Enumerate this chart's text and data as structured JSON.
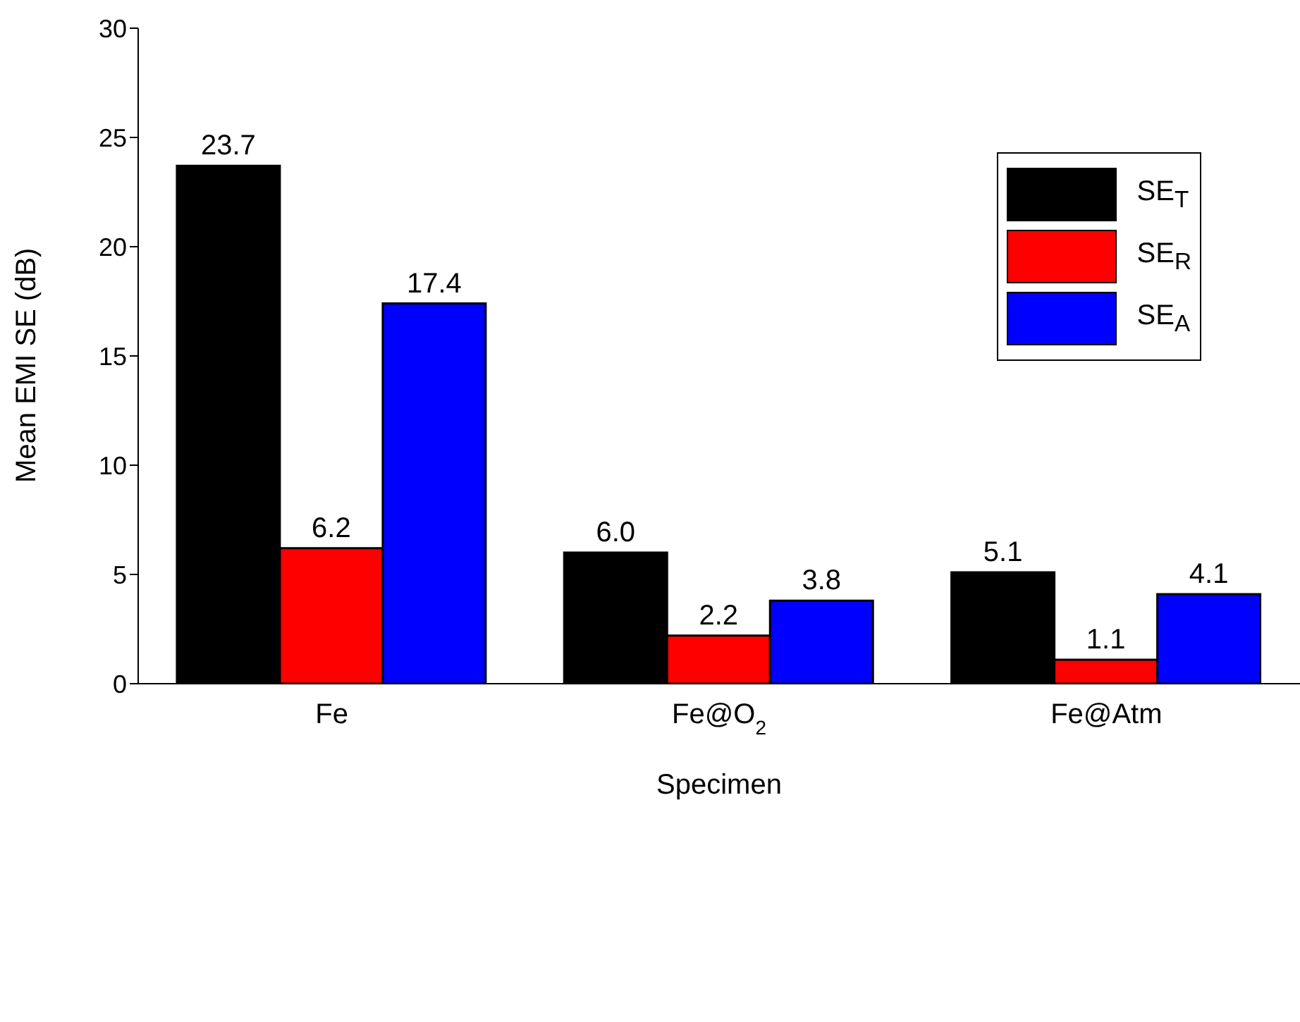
{
  "chart_data": {
    "type": "bar",
    "xlabel": "Specimen",
    "ylabel": "Mean EMI SE (dB)",
    "categories": [
      "Fe",
      "Fe@O$_{2}$",
      "Fe@Atm"
    ],
    "series": [
      {
        "name": "SE$_{T}$",
        "color": "#000000",
        "values": [
          23.7,
          6.0,
          5.1
        ],
        "value_labels": [
          "23.7",
          "6.0",
          "5.1"
        ]
      },
      {
        "name": "SE$_{R}$",
        "color": "#ff0000",
        "values": [
          6.2,
          2.2,
          1.1
        ],
        "value_labels": [
          "6.2",
          "2.2",
          "1.1"
        ]
      },
      {
        "name": "SE$_{A}$",
        "color": "#0000ff",
        "values": [
          17.4,
          3.8,
          4.1
        ],
        "value_labels": [
          "17.4",
          "3.8",
          "4.1"
        ]
      }
    ],
    "ylim": [
      0,
      30
    ],
    "yticks": [
      0,
      5,
      10,
      15,
      20,
      25,
      30
    ],
    "legend": "top right"
  }
}
